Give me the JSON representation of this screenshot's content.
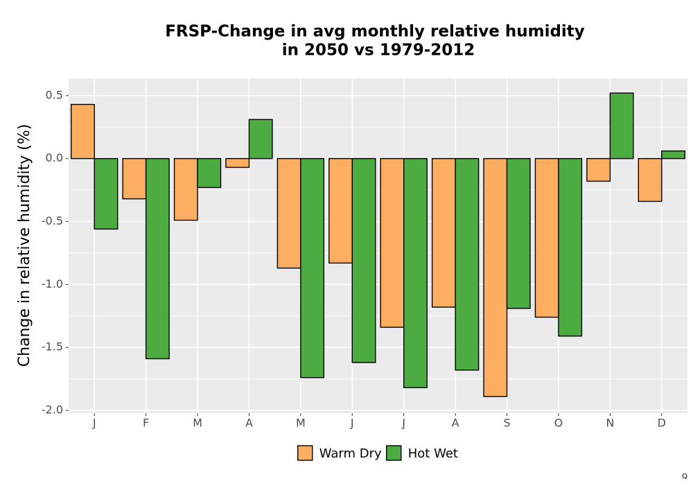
{
  "chart_data": {
    "type": "bar",
    "title": [
      "FRSP-Change in avg monthly relative humidity",
      "in 2050 vs 1979-2012"
    ],
    "y_label": "Change in relative humidity (%)",
    "categories": [
      "J",
      "F",
      "M",
      "A",
      "M",
      "J",
      "J",
      "A",
      "S",
      "O",
      "N",
      "D"
    ],
    "series": [
      {
        "name": "Warm Dry",
        "color": "#fdae61",
        "values": [
          0.43,
          -0.32,
          -0.49,
          -0.07,
          -0.87,
          -0.83,
          -1.34,
          -1.18,
          -1.89,
          -1.26,
          -0.18,
          -0.34
        ]
      },
      {
        "name": "Hot Wet",
        "color": "#4dac41",
        "values": [
          -0.56,
          -1.59,
          -0.23,
          0.31,
          -1.74,
          -1.62,
          -1.82,
          -1.68,
          -1.19,
          -1.41,
          0.52,
          0.06
        ]
      }
    ],
    "ylim": [
      -2.022,
      0.637
    ],
    "yticks": [
      {
        "value": -2,
        "label": "-2.0"
      },
      -1.5,
      {
        "value": -1,
        "label": "-1.0"
      },
      -0.5,
      {
        "value": 0,
        "label": "0.0"
      },
      0.5
    ],
    "grid": true,
    "legend_position": "bottom",
    "corner_text": "Q"
  }
}
